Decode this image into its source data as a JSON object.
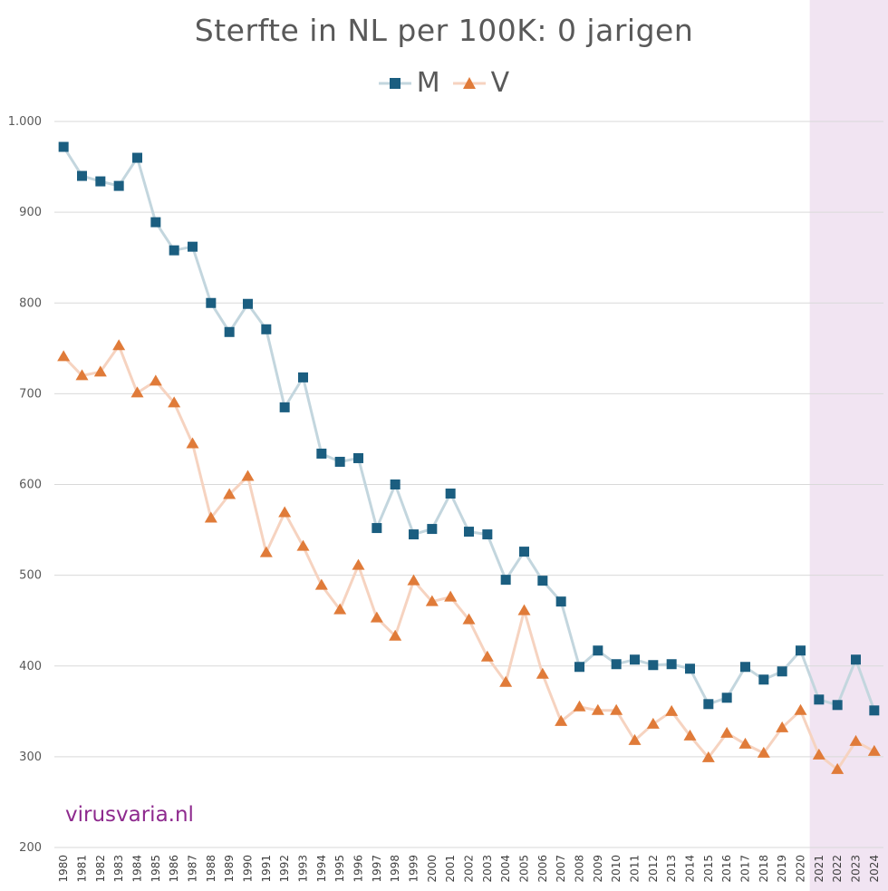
{
  "chart_data": {
    "type": "line",
    "title": "Sterfte in NL per 100K: 0 jarigen",
    "x": [
      "1980",
      "1981",
      "1982",
      "1983",
      "1984",
      "1985",
      "1986",
      "1987",
      "1988",
      "1989",
      "1990",
      "1991",
      "1992",
      "1993",
      "1994",
      "1995",
      "1996",
      "1997",
      "1998",
      "1999",
      "2000",
      "2001",
      "2002",
      "2003",
      "2004",
      "2005",
      "2006",
      "2007",
      "2008",
      "2009",
      "2010",
      "2011",
      "2012",
      "2013",
      "2014",
      "2015",
      "2016",
      "2017",
      "2018",
      "2019",
      "2020",
      "2021",
      "2022",
      "2023",
      "2024"
    ],
    "series": [
      {
        "name": "M",
        "color": "#1b5e80",
        "line_color": "#c3d6de",
        "marker": "square",
        "values": [
          972,
          940,
          934,
          929,
          960,
          889,
          858,
          862,
          800,
          768,
          799,
          771,
          685,
          718,
          634,
          625,
          629,
          552,
          600,
          545,
          551,
          590,
          548,
          545,
          495,
          526,
          494,
          471,
          399,
          417,
          402,
          407,
          401,
          402,
          397,
          358,
          365,
          399,
          385,
          394,
          417,
          363,
          357,
          407,
          351
        ]
      },
      {
        "name": "V",
        "color": "#e07b39",
        "line_color": "#f6d3c0",
        "marker": "triangle",
        "values": [
          741,
          720,
          724,
          753,
          701,
          714,
          690,
          645,
          563,
          589,
          609,
          525,
          569,
          532,
          489,
          462,
          511,
          453,
          433,
          494,
          471,
          476,
          451,
          410,
          382,
          461,
          391,
          339,
          355,
          351,
          351,
          318,
          336,
          350,
          323,
          299,
          326,
          314,
          304,
          332,
          351,
          302,
          286,
          317,
          306
        ]
      }
    ],
    "ylim": [
      200,
      1000
    ],
    "yticks": [
      "200",
      "300",
      "400",
      "500",
      "600",
      "700",
      "800",
      "900",
      "1.000"
    ],
    "ytick_values": [
      200,
      300,
      400,
      500,
      600,
      700,
      800,
      900,
      1000
    ],
    "grid": true,
    "legend": "top-center",
    "highlight_from": "2021",
    "highlight_color": "#f1e4f2"
  },
  "watermark": "virusvaria.nl"
}
